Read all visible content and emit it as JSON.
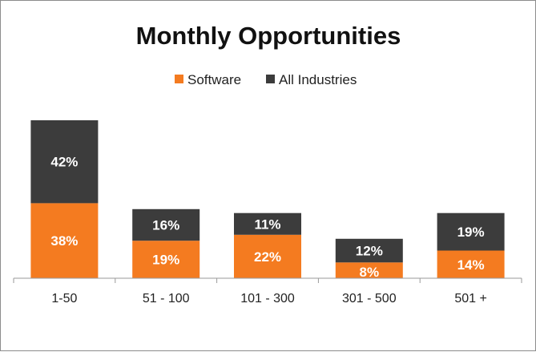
{
  "chart_data": {
    "type": "bar",
    "stacked": true,
    "title": "Monthly Opportunities",
    "categories": [
      "1-50",
      "51 - 100",
      "101 - 300",
      "301 - 500",
      "501 +"
    ],
    "series": [
      {
        "name": "Software",
        "values": [
          38,
          19,
          22,
          8,
          14
        ],
        "color": "#f47b20"
      },
      {
        "name": "All Industries",
        "values": [
          42,
          16,
          11,
          12,
          19
        ],
        "color": "#3c3c3c"
      }
    ],
    "value_suffix": "%",
    "ylim": [
      0,
      80
    ],
    "grid": false,
    "legend_position": "top-center"
  }
}
